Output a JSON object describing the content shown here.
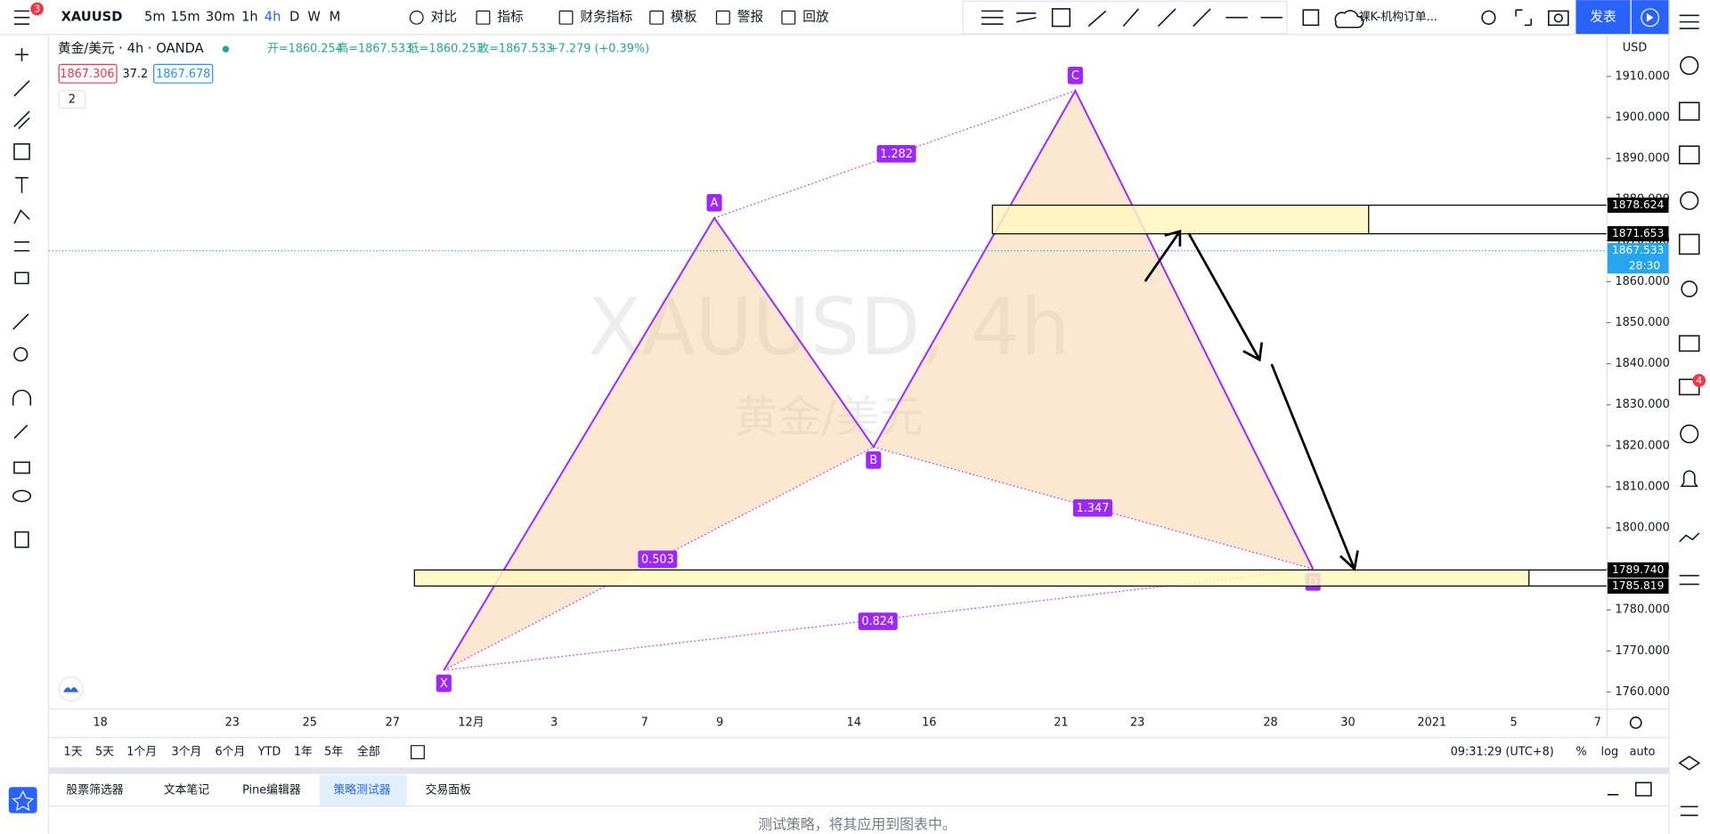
{
  "toolbar": {
    "symbol": "XAUUSD",
    "badge": "3",
    "intervals": [
      "5m",
      "15m",
      "30m",
      "1h",
      "4h",
      "D",
      "W",
      "M"
    ],
    "buttons": [
      "对比",
      "指标",
      "财务指标",
      "模板",
      "警报",
      "回放"
    ],
    "layout_name": "裸K-机构订单...",
    "publish": "发表"
  },
  "legend": {
    "symbol": "黄金/美元 · 4h · OANDA",
    "open": "开=1860.254",
    "high": "高=1867.533",
    "low": "低=1860.253",
    "close": "收=1867.533",
    "change": "+7.279 (+0.39%)",
    "bid": "1867.306",
    "spread": "37.2",
    "ask": "1867.678",
    "collapse": "2"
  },
  "chart": {
    "watermark_symbol": "XAUUSD, 4h",
    "watermark_name": "黄金/美元",
    "currency": "USD",
    "ylim": [
      1756.5,
      1918.5
    ],
    "yticks": [
      {
        "value": 1760,
        "label": "1760.000"
      },
      {
        "value": 1770,
        "label": "1770.000"
      },
      {
        "value": 1780,
        "label": "1780.000"
      },
      {
        "value": 1790,
        "label": "1790.000"
      },
      {
        "value": 1800,
        "label": "1800.000"
      },
      {
        "value": 1810,
        "label": "1810.000"
      },
      {
        "value": 1820,
        "label": "1820.000"
      },
      {
        "value": 1830,
        "label": "1830.000"
      },
      {
        "value": 1840,
        "label": "1840.000"
      },
      {
        "value": 1850,
        "label": "1850.000"
      },
      {
        "value": 1860,
        "label": "1860.000"
      },
      {
        "value": 1870,
        "label": "1870.000"
      },
      {
        "value": 1880,
        "label": "1880.000"
      },
      {
        "value": 1890,
        "label": "1890.000"
      },
      {
        "value": 1900,
        "label": "1900.000"
      },
      {
        "value": 1910,
        "label": "1910.000"
      }
    ],
    "x_labels": [
      "18",
      "23",
      "25",
      "27",
      "12月",
      "3",
      "7",
      "9",
      "14",
      "16",
      "21",
      "23",
      "28",
      "30",
      "2021",
      "5",
      "7"
    ],
    "pattern_points": [
      {
        "label": "X",
        "price": 1765.3
      },
      {
        "label": "A",
        "price": 1875.5
      },
      {
        "label": "B",
        "price": 1819.7
      },
      {
        "label": "C",
        "price": 1906.5
      },
      {
        "label": "D",
        "price": 1790
      }
    ],
    "ratios": [
      "1.282",
      "0.503",
      "1.347",
      "0.824"
    ],
    "zones": [
      {
        "top": 1878.624,
        "bottom": 1871.653
      },
      {
        "top": {
          "value": 1789.74,
          "label": "1789.740"
        },
        "bottom": 1785.819
      }
    ],
    "last_price": 1867.533,
    "countdown": "28:30"
  },
  "bottom_bar": {
    "ranges": [
      "1天",
      "5天",
      "1个月",
      "3个月",
      "6个月",
      "YTD",
      "1年",
      "5年",
      "全部"
    ],
    "clock": "09:31:29 (UTC+8)",
    "percent": "%",
    "log": "log",
    "auto": "auto"
  },
  "panel": {
    "tabs": [
      "股票筛选器",
      "文本笔记",
      "Pine编辑器",
      "策略测试器",
      "交易面板"
    ],
    "message": "测试策略，将其应用到图表中。"
  },
  "sidebar": {
    "badge": "4"
  }
}
